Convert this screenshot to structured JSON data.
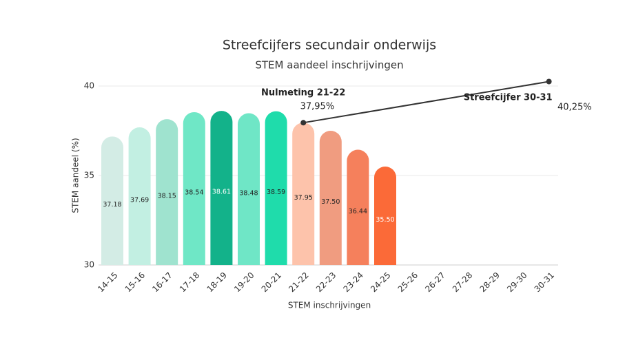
{
  "chart_data": {
    "type": "bar",
    "title": "Streefcijfers secundair onderwijs",
    "subtitle": "STEM aandeel inschrijvingen",
    "x_label": "STEM inschrijvingen",
    "y_label": "STEM aandeel (%)",
    "categories": [
      "14-15",
      "15-16",
      "16-17",
      "17-18",
      "18-19",
      "19-20",
      "20-21",
      "21-22",
      "22-23",
      "23-24",
      "24-25",
      "25-26",
      "26-27",
      "27-28",
      "28-29",
      "29-30",
      "30-31"
    ],
    "values": [
      37.18,
      37.69,
      38.15,
      38.54,
      38.61,
      38.48,
      38.59,
      37.95,
      37.5,
      36.44,
      35.5,
      null,
      null,
      null,
      null,
      null,
      null
    ],
    "value_labels": [
      "37.18",
      "37.69",
      "38.15",
      "38.54",
      "38.61",
      "38.48",
      "38.59",
      "37.95",
      "37.50",
      "36.44",
      "35.50",
      null,
      null,
      null,
      null,
      null,
      null
    ],
    "colors": [
      "#d3ece5",
      "#c2efe2",
      "#9fe3cf",
      "#6fe7c6",
      "#13b28a",
      "#6fe6c6",
      "#1fdcab",
      "#fdc3ab",
      "#f09c80",
      "#f5805c",
      "#fb6a38",
      null,
      null,
      null,
      null,
      null,
      null
    ],
    "value_label_colors": [
      "#222",
      "#222",
      "#222",
      "#222",
      "#ffffff",
      "#222",
      "#222",
      "#222",
      "#222",
      "#222",
      "#ffffff",
      null,
      null,
      null,
      null,
      null,
      null
    ],
    "ylim": [
      30,
      40
    ],
    "yticks": [
      30,
      35,
      40
    ],
    "grid": true,
    "line": {
      "type": "line",
      "color": "#333333",
      "x": [
        "21-22",
        "30-31"
      ],
      "values": [
        37.95,
        40.25
      ],
      "value_labels": [
        "37,95%",
        "40,25%"
      ],
      "annotations": [
        "Nulmeting 21-22",
        "Streefcijfer 30-31"
      ]
    }
  }
}
